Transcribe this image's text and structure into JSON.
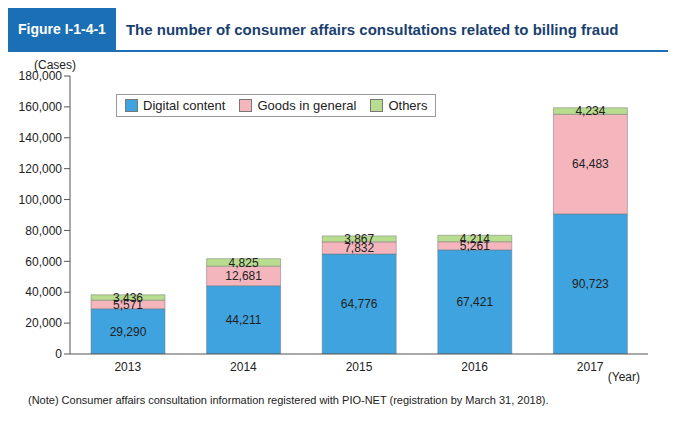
{
  "figure_number": "Figure I-1-4-1",
  "chart_data": {
    "type": "bar",
    "title": "The number of consumer affairs consultations related to billing fraud",
    "y_label": "(Cases)",
    "x_label": "(Year)",
    "note": "(Note)  Consumer affairs consultation information registered with PIO-NET (registration by March 31, 2018).",
    "categories": [
      "2013",
      "2014",
      "2015",
      "2016",
      "2017"
    ],
    "series": [
      {
        "name": "Digital content",
        "color": "#3fa3e0",
        "values": [
          29290,
          44211,
          64776,
          67421,
          90723
        ],
        "value_labels": [
          "29,290",
          "44,211",
          "64,776",
          "67,421",
          "90,723"
        ]
      },
      {
        "name": "Goods in general",
        "color": "#f5b5bd",
        "values": [
          5571,
          12681,
          7832,
          5261,
          64483
        ],
        "value_labels": [
          "5,571",
          "12,681",
          "7,832",
          "5,261",
          "64,483"
        ]
      },
      {
        "name": "Others",
        "color": "#b9dd8e",
        "values": [
          3436,
          4825,
          3867,
          4214,
          4234
        ],
        "value_labels": [
          "3,436",
          "4,825",
          "3,867",
          "4,214",
          "4,234"
        ]
      }
    ],
    "stacked": true,
    "data_labels": true,
    "legend": "upper left",
    "grid": false,
    "ylim": [
      0,
      180000
    ],
    "yticks": [
      0,
      {
        "value": 20000,
        "label": "20,000"
      },
      {
        "value": 40000,
        "label": "40,000"
      },
      {
        "value": 60000,
        "label": "60,000"
      },
      {
        "value": 80000,
        "label": "80,000"
      },
      {
        "value": 100000,
        "label": "100,000"
      },
      {
        "value": 120000,
        "label": "120,000"
      },
      {
        "value": 140000,
        "label": "140,000"
      },
      {
        "value": 160000,
        "label": "160,000"
      },
      {
        "value": 180000,
        "label": "180,000"
      }
    ]
  }
}
